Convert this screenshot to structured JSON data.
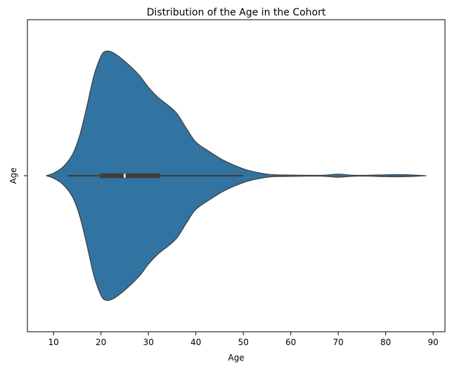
{
  "chart_data": {
    "type": "violin",
    "orientation": "horizontal",
    "title": "Distribution of the Age in the Cohort",
    "xlabel": "Age",
    "ylabel": "",
    "category": "Age",
    "xlim": [
      4.5,
      92.5
    ],
    "xticks": [
      10,
      20,
      30,
      40,
      50,
      60,
      70,
      80,
      90
    ],
    "grid": false,
    "colors": {
      "violin_fill": "#3274a1",
      "violin_edge": "#3f3f3f",
      "median": "#ffffff"
    },
    "violin_extent": [
      8.5,
      88.5
    ],
    "whisker_range": [
      13,
      50
    ],
    "quartiles": {
      "q1": 19.8,
      "median": 25.0,
      "q3": 32.5
    },
    "density_profile": [
      {
        "x": 8.5,
        "density": 0.0
      },
      {
        "x": 10.0,
        "density": 0.02
      },
      {
        "x": 12.0,
        "density": 0.07
      },
      {
        "x": 14.0,
        "density": 0.17
      },
      {
        "x": 15.5,
        "density": 0.32
      },
      {
        "x": 17.0,
        "density": 0.55
      },
      {
        "x": 18.5,
        "density": 0.8
      },
      {
        "x": 20.0,
        "density": 0.96
      },
      {
        "x": 21.0,
        "density": 1.0
      },
      {
        "x": 22.5,
        "density": 0.99
      },
      {
        "x": 25.0,
        "density": 0.92
      },
      {
        "x": 28.0,
        "density": 0.81
      },
      {
        "x": 30.0,
        "density": 0.71
      },
      {
        "x": 32.0,
        "density": 0.63
      },
      {
        "x": 34.0,
        "density": 0.57
      },
      {
        "x": 36.0,
        "density": 0.5
      },
      {
        "x": 38.0,
        "density": 0.38
      },
      {
        "x": 40.0,
        "density": 0.27
      },
      {
        "x": 43.0,
        "density": 0.19
      },
      {
        "x": 46.0,
        "density": 0.12
      },
      {
        "x": 50.0,
        "density": 0.055
      },
      {
        "x": 53.0,
        "density": 0.025
      },
      {
        "x": 56.0,
        "density": 0.008
      },
      {
        "x": 60.0,
        "density": 0.005
      },
      {
        "x": 64.0,
        "density": 0.003
      },
      {
        "x": 67.0,
        "density": 0.004
      },
      {
        "x": 70.0,
        "density": 0.012
      },
      {
        "x": 73.0,
        "density": 0.004
      },
      {
        "x": 76.0,
        "density": 0.003
      },
      {
        "x": 80.0,
        "density": 0.007
      },
      {
        "x": 83.0,
        "density": 0.008
      },
      {
        "x": 86.0,
        "density": 0.005
      },
      {
        "x": 88.5,
        "density": 0.0
      }
    ]
  }
}
